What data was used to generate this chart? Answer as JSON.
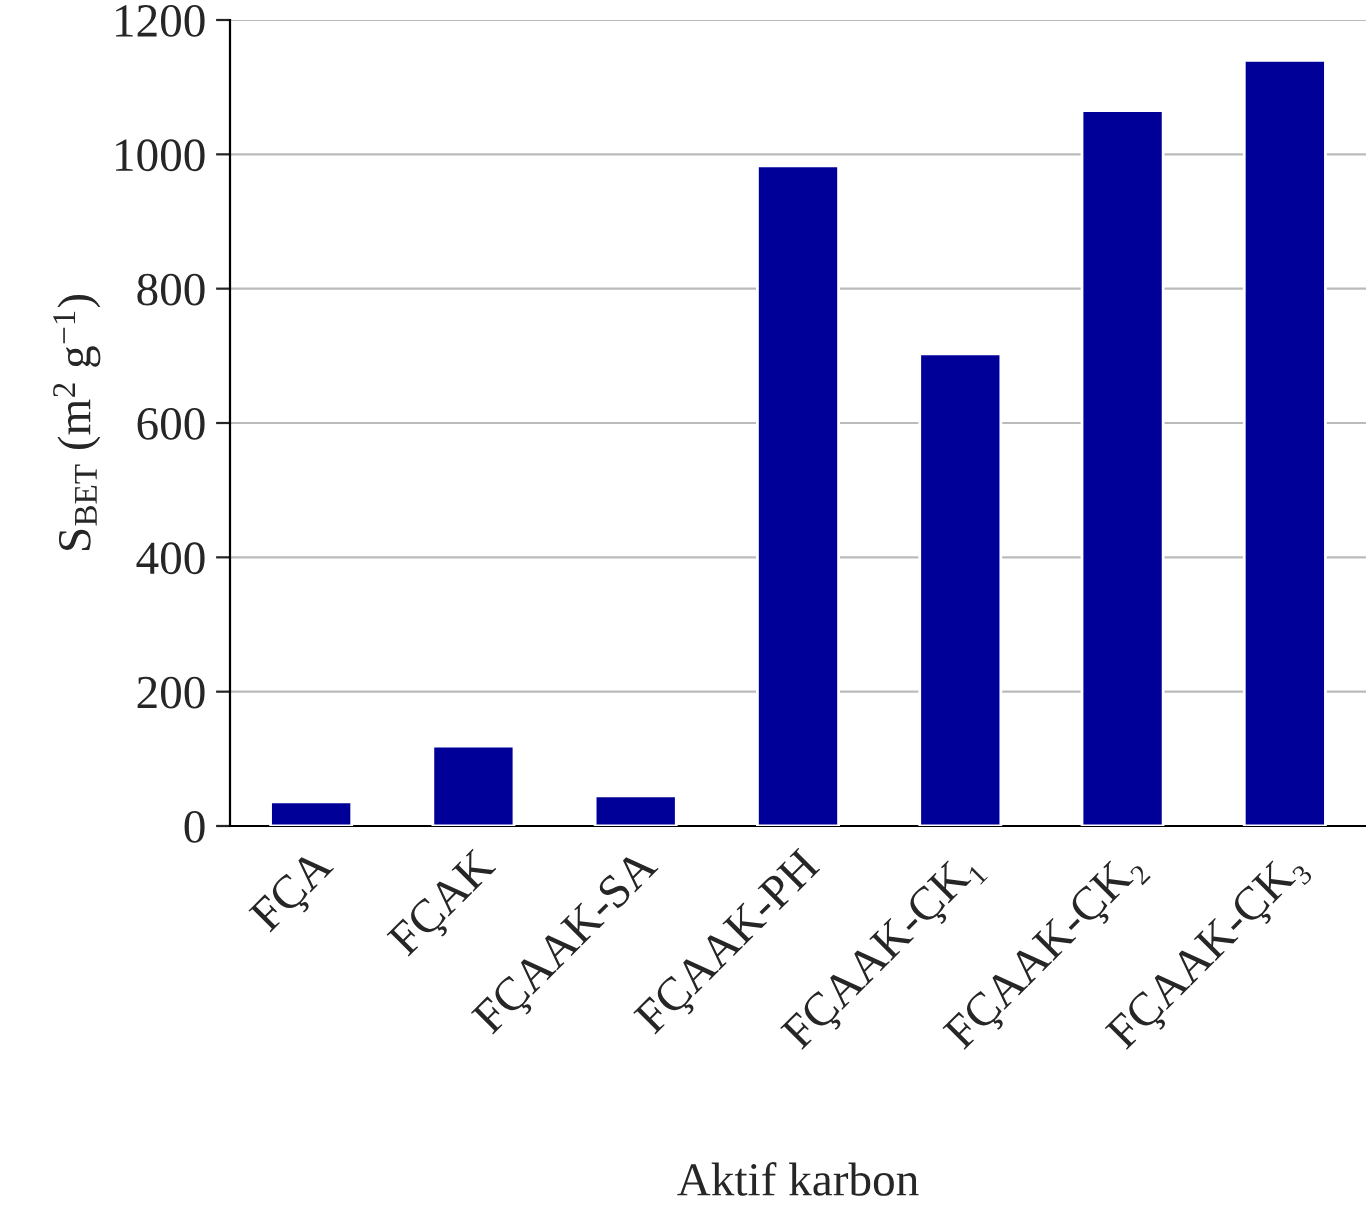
{
  "chart_data": {
    "type": "bar",
    "xlabel": "Aktif karbon",
    "ylabel": "S$_{BET}$ (m$^{2}$ g$^{−1}$)",
    "categories": [
      "FÇA",
      "FÇAK",
      "FÇAAK-SA",
      "FÇAAK-PH",
      "FÇAAK-ÇK₁",
      "FÇAAK-ÇK₂",
      "FÇAAK-ÇK₃"
    ],
    "values": [
      36,
      119,
      45,
      983,
      703,
      1065,
      1140
    ],
    "color": "#000099",
    "ylim": [
      0,
      1200
    ],
    "yticks": [
      0,
      200,
      400,
      600,
      800,
      1000,
      1200
    ],
    "grid": "y"
  }
}
